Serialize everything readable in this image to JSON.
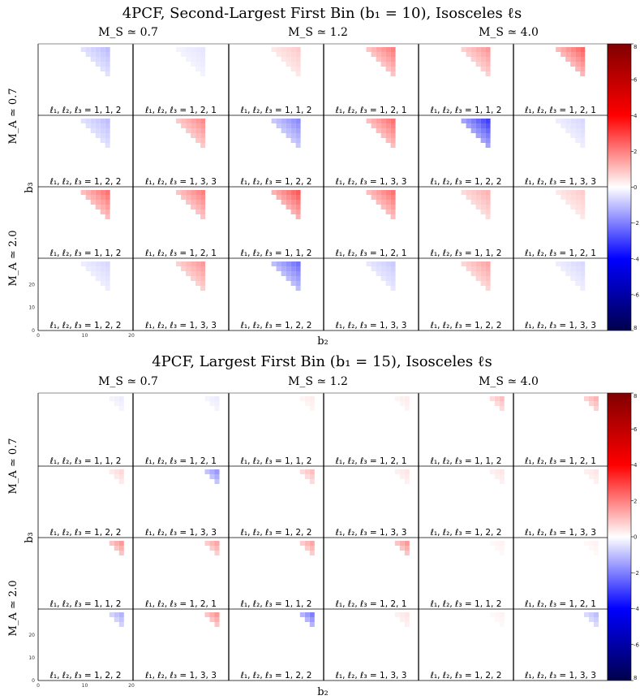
{
  "chart_data": [
    {
      "type": "heatmap",
      "title": "4PCF, Second-Largest First Bin (b₁ = 10), Isosceles ℓs",
      "xlabel": "b₂",
      "ylabel": "b₃",
      "column_headers": [
        "M_S ≃ 0.7",
        "M_S ≃ 1.2",
        "M_S ≃ 4.0"
      ],
      "row_headers": [
        "M_A ≃ 0.7",
        "M_A ≃ 2.0"
      ],
      "panel_labels": [
        [
          "ℓ₁, ℓ₂, ℓ₃ = 1, 1, 2",
          "ℓ₁, ℓ₂, ℓ₃ = 1, 2, 1",
          "ℓ₁, ℓ₂, ℓ₃ = 1, 1, 2",
          "ℓ₁, ℓ₂, ℓ₃ = 1, 2, 1",
          "ℓ₁, ℓ₂, ℓ₃ = 1, 1, 2",
          "ℓ₁, ℓ₂, ℓ₃ = 1, 2, 1"
        ],
        [
          "ℓ₁, ℓ₂, ℓ₃ = 1, 2, 2",
          "ℓ₁, ℓ₂, ℓ₃ = 1, 3, 3",
          "ℓ₁, ℓ₂, ℓ₃ = 1, 2, 2",
          "ℓ₁, ℓ₂, ℓ₃ = 1, 3, 3",
          "ℓ₁, ℓ₂, ℓ₃ = 1, 2, 2",
          "ℓ₁, ℓ₂, ℓ₃ = 1, 3, 3"
        ],
        [
          "ℓ₁, ℓ₂, ℓ₃ = 1, 1, 2",
          "ℓ₁, ℓ₂, ℓ₃ = 1, 2, 1",
          "ℓ₁, ℓ₂, ℓ₃ = 1, 1, 2",
          "ℓ₁, ℓ₂, ℓ₃ = 1, 2, 1",
          "ℓ₁, ℓ₂, ℓ₃ = 1, 1, 2",
          "ℓ₁, ℓ₂, ℓ₃ = 1, 2, 1"
        ],
        [
          "ℓ₁, ℓ₂, ℓ₃ = 1, 2, 2",
          "ℓ₁, ℓ₂, ℓ₃ = 1, 3, 3",
          "ℓ₁, ℓ₂, ℓ₃ = 1, 2, 2",
          "ℓ₁, ℓ₂, ℓ₃ = 1, 3, 3",
          "ℓ₁, ℓ₂, ℓ₃ = 1, 2, 2",
          "ℓ₁, ℓ₂, ℓ₃ = 1, 3, 3"
        ]
      ],
      "panel_values": [
        [
          -1.0,
          -0.4,
          0.8,
          2.0,
          1.6,
          2.4
        ],
        [
          -1.0,
          1.8,
          -1.8,
          2.2,
          -3.0,
          -0.6
        ],
        [
          2.2,
          2.0,
          2.6,
          2.2,
          1.2,
          0.8
        ],
        [
          -0.6,
          1.6,
          -2.2,
          -0.8,
          1.4,
          -0.6
        ]
      ],
      "x_ticks": [
        0,
        10,
        20
      ],
      "y_ticks": [
        0,
        10,
        20
      ],
      "colorbar": {
        "colormap": "seismic",
        "range": [
          -8,
          8
        ],
        "ticks": [
          8,
          6,
          4,
          2,
          0,
          -2,
          -4,
          -6,
          8
        ]
      },
      "grid": false
    },
    {
      "type": "heatmap",
      "title": "4PCF, Largest First Bin (b₁ = 15), Isosceles ℓs",
      "xlabel": "b₂",
      "ylabel": "b₃",
      "column_headers": [
        "M_S ≃ 0.7",
        "M_S ≃ 1.2",
        "M_S ≃ 4.0"
      ],
      "row_headers": [
        "M_A ≃ 0.7",
        "M_A ≃ 2.0"
      ],
      "panel_labels": [
        [
          "ℓ₁, ℓ₂, ℓ₃ = 1, 1, 2",
          "ℓ₁, ℓ₂, ℓ₃ = 1, 2, 1",
          "ℓ₁, ℓ₂, ℓ₃ = 1, 1, 2",
          "ℓ₁, ℓ₂, ℓ₃ = 1, 2, 1",
          "ℓ₁, ℓ₂, ℓ₃ = 1, 1, 2",
          "ℓ₁, ℓ₂, ℓ₃ = 1, 2, 1"
        ],
        [
          "ℓ₁, ℓ₂, ℓ₃ = 1, 2, 2",
          "ℓ₁, ℓ₂, ℓ₃ = 1, 3, 3",
          "ℓ₁, ℓ₂, ℓ₃ = 1, 2, 2",
          "ℓ₁, ℓ₂, ℓ₃ = 1, 3, 3",
          "ℓ₁, ℓ₂, ℓ₃ = 1, 2, 2",
          "ℓ₁, ℓ₂, ℓ₃ = 1, 3, 3"
        ],
        [
          "ℓ₁, ℓ₂, ℓ₃ = 1, 1, 2",
          "ℓ₁, ℓ₂, ℓ₃ = 1, 2, 1",
          "ℓ₁, ℓ₂, ℓ₃ = 1, 1, 2",
          "ℓ₁, ℓ₂, ℓ₃ = 1, 2, 1",
          "ℓ₁, ℓ₂, ℓ₃ = 1, 1, 2",
          "ℓ₁, ℓ₂, ℓ₃ = 1, 2, 1"
        ],
        [
          "ℓ₁, ℓ₂, ℓ₃ = 1, 2, 2",
          "ℓ₁, ℓ₂, ℓ₃ = 1, 3, 3",
          "ℓ₁, ℓ₂, ℓ₃ = 1, 2, 2",
          "ℓ₁, ℓ₂, ℓ₃ = 1, 3, 3",
          "ℓ₁, ℓ₂, ℓ₃ = 1, 2, 2",
          "ℓ₁, ℓ₂, ℓ₃ = 1, 3, 3"
        ]
      ],
      "panel_values": [
        [
          -0.3,
          -0.3,
          0.3,
          0.3,
          1.0,
          1.2
        ],
        [
          0.6,
          -1.6,
          1.0,
          0.4,
          0.4,
          0.4
        ],
        [
          1.6,
          1.4,
          1.4,
          1.6,
          0.2,
          0.2
        ],
        [
          -1.2,
          1.6,
          -2.0,
          0.4,
          0.2,
          -1.0
        ]
      ],
      "x_ticks": [
        0,
        10,
        20
      ],
      "y_ticks": [
        0,
        10,
        20
      ],
      "colorbar": {
        "colormap": "seismic",
        "range": [
          -8,
          8
        ],
        "ticks": [
          8,
          6,
          4,
          2,
          0,
          -2,
          -4,
          -6,
          8
        ]
      },
      "grid": false
    }
  ]
}
